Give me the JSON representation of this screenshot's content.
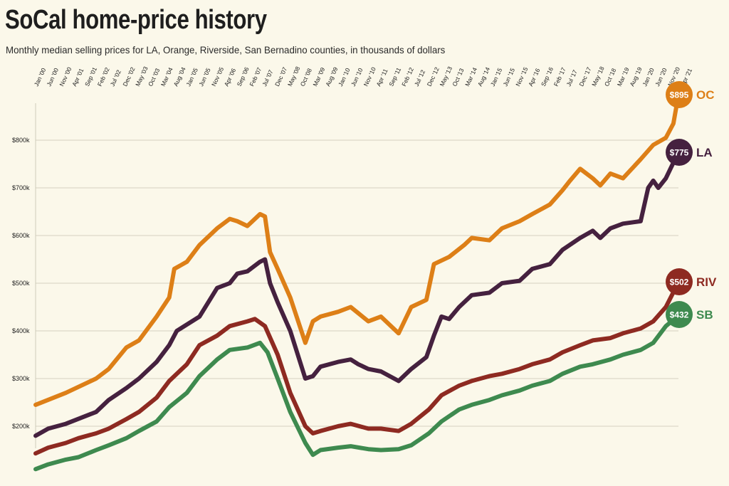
{
  "title": "SoCal home-price history",
  "subtitle": "Monthly median selling prices for LA, Orange, Riverside, San Bernadino counties, in thousands of dollars",
  "chart_data": {
    "type": "line",
    "title": "SoCal home-price history",
    "subtitle": "Monthly median selling prices for LA, Orange, Riverside, San Bernadino counties, in thousands of dollars",
    "xlabel": "",
    "ylabel": "",
    "x_ticks": [
      "Jan '00",
      "Jun '00",
      "Nov '00",
      "Apr '01",
      "Sep '01",
      "Feb '02",
      "Jul '02",
      "Dec '02",
      "May '03",
      "Oct '03",
      "Mar '04",
      "Aug '04",
      "Jan '05",
      "Jun '05",
      "Nov '05",
      "Apr '06",
      "Sep '06",
      "Feb '07",
      "Jul '07",
      "Dec '07",
      "May '08",
      "Oct '08",
      "Mar '09",
      "Aug '09",
      "Jan '10",
      "Jun '10",
      "Nov '10",
      "Apr '11",
      "Sep '11",
      "Feb '12",
      "Jul '12",
      "Dec '12",
      "May '13",
      "Oct '13",
      "Mar '14",
      "Aug '14",
      "Jan '15",
      "Jun '15",
      "Nov '15",
      "Apr '16",
      "Sep '16",
      "Feb '17",
      "Jul '17",
      "Dec '17",
      "May '18",
      "Oct '18",
      "Mar '19",
      "Aug '19",
      "Jan '20",
      "Jun '20",
      "Nov '20",
      "Apr '21"
    ],
    "y_ticks": [
      {
        "value": 200,
        "label": "$200k"
      },
      {
        "value": 300,
        "label": "$300k"
      },
      {
        "value": 400,
        "label": "$400k"
      },
      {
        "value": 500,
        "label": "$500k"
      },
      {
        "value": 600,
        "label": "$600k"
      },
      {
        "value": 700,
        "label": "$700k"
      },
      {
        "value": 800,
        "label": "$800k"
      }
    ],
    "ylim": [
      130,
      1000
    ],
    "x_range": [
      "2000-01",
      "2021-04"
    ],
    "grid": true,
    "legend": "end labels",
    "series": [
      {
        "name": "OC",
        "label": "$895",
        "color": "#dd7f17",
        "points": [
          [
            "2000-01",
            245
          ],
          [
            "2001-01",
            270
          ],
          [
            "2002-01",
            300
          ],
          [
            "2002-06",
            320
          ],
          [
            "2003-01",
            365
          ],
          [
            "2003-06",
            380
          ],
          [
            "2004-01",
            430
          ],
          [
            "2004-06",
            470
          ],
          [
            "2004-08",
            530
          ],
          [
            "2005-01",
            545
          ],
          [
            "2005-06",
            580
          ],
          [
            "2006-01",
            615
          ],
          [
            "2006-06",
            635
          ],
          [
            "2006-09",
            630
          ],
          [
            "2007-01",
            620
          ],
          [
            "2007-06",
            645
          ],
          [
            "2007-08",
            640
          ],
          [
            "2007-10",
            565
          ],
          [
            "2008-01",
            530
          ],
          [
            "2008-06",
            470
          ],
          [
            "2008-12",
            375
          ],
          [
            "2009-03",
            420
          ],
          [
            "2009-06",
            430
          ],
          [
            "2010-01",
            440
          ],
          [
            "2010-06",
            450
          ],
          [
            "2011-01",
            420
          ],
          [
            "2011-06",
            430
          ],
          [
            "2012-01",
            395
          ],
          [
            "2012-06",
            450
          ],
          [
            "2012-12",
            465
          ],
          [
            "2013-03",
            540
          ],
          [
            "2013-09",
            555
          ],
          [
            "2014-03",
            580
          ],
          [
            "2014-06",
            595
          ],
          [
            "2015-01",
            590
          ],
          [
            "2015-06",
            615
          ],
          [
            "2016-01",
            630
          ],
          [
            "2016-06",
            645
          ],
          [
            "2017-01",
            665
          ],
          [
            "2017-06",
            695
          ],
          [
            "2017-09",
            715
          ],
          [
            "2018-01",
            740
          ],
          [
            "2018-06",
            720
          ],
          [
            "2018-09",
            705
          ],
          [
            "2019-01",
            730
          ],
          [
            "2019-06",
            720
          ],
          [
            "2020-01",
            760
          ],
          [
            "2020-06",
            790
          ],
          [
            "2020-11",
            805
          ],
          [
            "2021-02",
            835
          ],
          [
            "2021-04",
            895
          ]
        ]
      },
      {
        "name": "LA",
        "label": "$775",
        "color": "#45213f",
        "points": [
          [
            "2000-01",
            180
          ],
          [
            "2000-06",
            195
          ],
          [
            "2001-01",
            205
          ],
          [
            "2002-01",
            230
          ],
          [
            "2002-06",
            255
          ],
          [
            "2003-01",
            280
          ],
          [
            "2003-06",
            300
          ],
          [
            "2004-01",
            335
          ],
          [
            "2004-06",
            370
          ],
          [
            "2004-09",
            400
          ],
          [
            "2005-06",
            430
          ],
          [
            "2006-01",
            490
          ],
          [
            "2006-06",
            500
          ],
          [
            "2006-09",
            520
          ],
          [
            "2007-01",
            525
          ],
          [
            "2007-06",
            545
          ],
          [
            "2007-08",
            550
          ],
          [
            "2007-10",
            500
          ],
          [
            "2008-01",
            460
          ],
          [
            "2008-06",
            400
          ],
          [
            "2008-12",
            300
          ],
          [
            "2009-03",
            305
          ],
          [
            "2009-06",
            325
          ],
          [
            "2010-01",
            335
          ],
          [
            "2010-06",
            340
          ],
          [
            "2010-09",
            330
          ],
          [
            "2011-01",
            320
          ],
          [
            "2011-06",
            315
          ],
          [
            "2012-01",
            295
          ],
          [
            "2012-06",
            320
          ],
          [
            "2012-12",
            345
          ],
          [
            "2013-03",
            390
          ],
          [
            "2013-06",
            430
          ],
          [
            "2013-09",
            425
          ],
          [
            "2014-01",
            450
          ],
          [
            "2014-06",
            475
          ],
          [
            "2015-01",
            480
          ],
          [
            "2015-06",
            500
          ],
          [
            "2016-01",
            505
          ],
          [
            "2016-06",
            530
          ],
          [
            "2017-01",
            540
          ],
          [
            "2017-06",
            570
          ],
          [
            "2018-01",
            595
          ],
          [
            "2018-06",
            610
          ],
          [
            "2018-09",
            595
          ],
          [
            "2019-01",
            615
          ],
          [
            "2019-06",
            625
          ],
          [
            "2020-01",
            630
          ],
          [
            "2020-04",
            700
          ],
          [
            "2020-06",
            715
          ],
          [
            "2020-08",
            700
          ],
          [
            "2020-11",
            720
          ],
          [
            "2021-04",
            775
          ]
        ]
      },
      {
        "name": "RIV",
        "label": "$502",
        "color": "#8e2a21",
        "points": [
          [
            "2000-01",
            143
          ],
          [
            "2000-06",
            155
          ],
          [
            "2001-01",
            165
          ],
          [
            "2001-06",
            175
          ],
          [
            "2002-01",
            185
          ],
          [
            "2002-06",
            195
          ],
          [
            "2003-01",
            215
          ],
          [
            "2003-06",
            230
          ],
          [
            "2004-01",
            260
          ],
          [
            "2004-06",
            295
          ],
          [
            "2005-01",
            330
          ],
          [
            "2005-06",
            370
          ],
          [
            "2006-01",
            390
          ],
          [
            "2006-06",
            410
          ],
          [
            "2007-01",
            420
          ],
          [
            "2007-04",
            425
          ],
          [
            "2007-08",
            410
          ],
          [
            "2008-01",
            350
          ],
          [
            "2008-06",
            270
          ],
          [
            "2008-12",
            200
          ],
          [
            "2009-03",
            185
          ],
          [
            "2009-06",
            190
          ],
          [
            "2010-01",
            200
          ],
          [
            "2010-06",
            205
          ],
          [
            "2011-01",
            195
          ],
          [
            "2011-06",
            195
          ],
          [
            "2012-01",
            190
          ],
          [
            "2012-06",
            205
          ],
          [
            "2013-01",
            235
          ],
          [
            "2013-06",
            265
          ],
          [
            "2014-01",
            285
          ],
          [
            "2014-06",
            295
          ],
          [
            "2015-01",
            305
          ],
          [
            "2015-06",
            310
          ],
          [
            "2016-01",
            320
          ],
          [
            "2016-06",
            330
          ],
          [
            "2017-01",
            340
          ],
          [
            "2017-06",
            355
          ],
          [
            "2018-01",
            370
          ],
          [
            "2018-06",
            380
          ],
          [
            "2019-01",
            385
          ],
          [
            "2019-06",
            395
          ],
          [
            "2020-01",
            405
          ],
          [
            "2020-06",
            420
          ],
          [
            "2020-11",
            450
          ],
          [
            "2021-04",
            502
          ]
        ]
      },
      {
        "name": "SB",
        "label": "$432",
        "color": "#3e8a4f",
        "points": [
          [
            "2000-01",
            110
          ],
          [
            "2000-06",
            120
          ],
          [
            "2001-01",
            130
          ],
          [
            "2001-06",
            135
          ],
          [
            "2002-01",
            150
          ],
          [
            "2002-06",
            160
          ],
          [
            "2003-01",
            175
          ],
          [
            "2003-06",
            190
          ],
          [
            "2004-01",
            210
          ],
          [
            "2004-06",
            240
          ],
          [
            "2005-01",
            270
          ],
          [
            "2005-06",
            305
          ],
          [
            "2006-01",
            340
          ],
          [
            "2006-06",
            360
          ],
          [
            "2007-01",
            365
          ],
          [
            "2007-06",
            375
          ],
          [
            "2007-09",
            355
          ],
          [
            "2008-01",
            300
          ],
          [
            "2008-06",
            230
          ],
          [
            "2008-12",
            165
          ],
          [
            "2009-03",
            140
          ],
          [
            "2009-06",
            150
          ],
          [
            "2010-01",
            155
          ],
          [
            "2010-06",
            158
          ],
          [
            "2011-01",
            152
          ],
          [
            "2011-06",
            150
          ],
          [
            "2012-01",
            152
          ],
          [
            "2012-06",
            160
          ],
          [
            "2013-01",
            185
          ],
          [
            "2013-06",
            210
          ],
          [
            "2014-01",
            235
          ],
          [
            "2014-06",
            245
          ],
          [
            "2015-01",
            255
          ],
          [
            "2015-06",
            265
          ],
          [
            "2016-01",
            275
          ],
          [
            "2016-06",
            285
          ],
          [
            "2017-01",
            295
          ],
          [
            "2017-06",
            310
          ],
          [
            "2018-01",
            325
          ],
          [
            "2018-06",
            330
          ],
          [
            "2019-01",
            340
          ],
          [
            "2019-06",
            350
          ],
          [
            "2020-01",
            360
          ],
          [
            "2020-06",
            375
          ],
          [
            "2020-11",
            410
          ],
          [
            "2021-04",
            432
          ]
        ]
      }
    ]
  }
}
